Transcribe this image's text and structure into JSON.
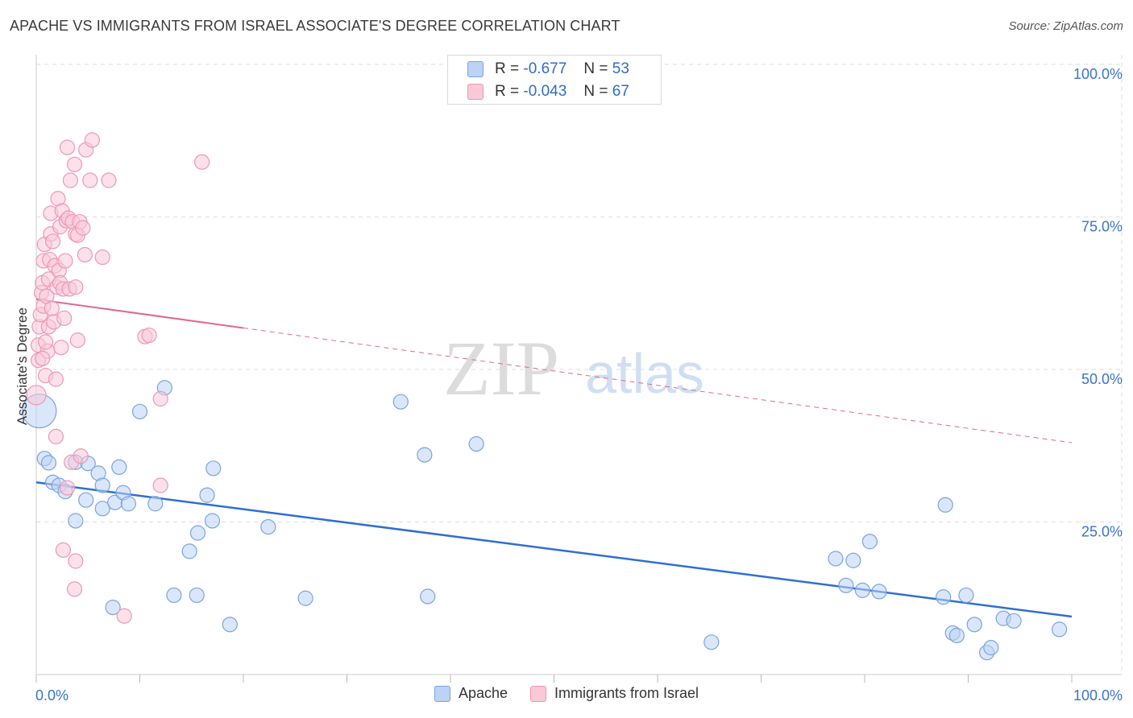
{
  "title": "APACHE VS IMMIGRANTS FROM ISRAEL ASSOCIATE'S DEGREE CORRELATION CHART",
  "source": "Source: ZipAtlas.com",
  "watermark": {
    "zip": "ZIP",
    "atlas": "atlas"
  },
  "stats": [
    {
      "label_r": "R =",
      "r": "-0.677",
      "label_n": "N =",
      "n": "53",
      "color": "#bcd3f5"
    },
    {
      "label_r": "R =",
      "r": "-0.043",
      "label_n": "N =",
      "n": "67",
      "color": "#f9c9d8"
    }
  ],
  "legend": {
    "apache": "Apache",
    "israel": "Immigrants from Israel"
  },
  "chart_data": {
    "type": "scatter",
    "title": "APACHE VS IMMIGRANTS FROM ISRAEL ASSOCIATE'S DEGREE CORRELATION CHART",
    "xlabel": "",
    "ylabel": "Associate's Degree",
    "xlim": [
      0,
      100
    ],
    "ylim": [
      0,
      100
    ],
    "x_tick_labels": [
      "0.0%",
      "100.0%"
    ],
    "y_tick_labels": [
      "25.0%",
      "50.0%",
      "75.0%",
      "100.0%"
    ],
    "y_ticks": [
      25,
      50,
      75,
      100
    ],
    "series": [
      {
        "name": "Apache",
        "color": "#7aa4e0",
        "fill": "#bcd3f5",
        "line_color": "#2f6fd1",
        "trend": {
          "x0": 0,
          "y0": 31.5,
          "x1": 100,
          "y1": 9.5,
          "dashed_from": null
        },
        "points": [
          [
            0.3,
            43.2
          ],
          [
            0.8,
            35.4
          ],
          [
            1.2,
            34.7
          ],
          [
            1.6,
            31.5
          ],
          [
            2.2,
            31.0
          ],
          [
            2.8,
            30.0
          ],
          [
            3.8,
            34.8
          ],
          [
            3.8,
            25.2
          ],
          [
            5.0,
            34.6
          ],
          [
            4.8,
            28.6
          ],
          [
            6.0,
            33.0
          ],
          [
            6.4,
            31.0
          ],
          [
            6.4,
            27.2
          ],
          [
            7.4,
            11.0
          ],
          [
            7.6,
            28.2
          ],
          [
            8.0,
            34.0
          ],
          [
            8.4,
            29.8
          ],
          [
            8.9,
            28.0
          ],
          [
            10.0,
            43.1
          ],
          [
            11.5,
            28.0
          ],
          [
            12.4,
            47.0
          ],
          [
            13.3,
            13.0
          ],
          [
            14.8,
            20.2
          ],
          [
            15.5,
            13.0
          ],
          [
            15.6,
            23.2
          ],
          [
            16.5,
            29.4
          ],
          [
            17.1,
            33.8
          ],
          [
            17.0,
            25.2
          ],
          [
            18.7,
            8.2
          ],
          [
            22.4,
            24.2
          ],
          [
            26.0,
            12.5
          ],
          [
            35.2,
            44.7
          ],
          [
            37.5,
            36.0
          ],
          [
            37.8,
            12.8
          ],
          [
            42.5,
            37.8
          ],
          [
            65.2,
            5.3
          ],
          [
            77.2,
            19.0
          ],
          [
            78.2,
            14.6
          ],
          [
            78.9,
            18.7
          ],
          [
            79.8,
            13.8
          ],
          [
            80.5,
            21.8
          ],
          [
            81.4,
            13.6
          ],
          [
            87.6,
            12.7
          ],
          [
            87.8,
            27.8
          ],
          [
            88.5,
            6.8
          ],
          [
            88.9,
            6.4
          ],
          [
            89.8,
            13.0
          ],
          [
            90.6,
            8.2
          ],
          [
            91.8,
            3.6
          ],
          [
            92.2,
            4.4
          ],
          [
            93.4,
            9.2
          ],
          [
            94.4,
            8.8
          ],
          [
            98.8,
            7.4
          ]
        ]
      },
      {
        "name": "Immigrants from Israel",
        "color": "#ec98b4",
        "fill": "#f9c9d8",
        "line_color": "#e0698f",
        "trend": {
          "x0": 0,
          "y0": 61.5,
          "x1": 100,
          "y1": 38.0,
          "dashed_from": 20
        },
        "points": [
          [
            0.0,
            45.8
          ],
          [
            0.2,
            51.5
          ],
          [
            0.2,
            54.0
          ],
          [
            0.3,
            57.0
          ],
          [
            0.4,
            59.0
          ],
          [
            0.5,
            62.6
          ],
          [
            0.6,
            64.2
          ],
          [
            0.7,
            60.4
          ],
          [
            0.7,
            67.8
          ],
          [
            0.8,
            70.5
          ],
          [
            0.9,
            49.0
          ],
          [
            1.0,
            62.0
          ],
          [
            1.1,
            53.0
          ],
          [
            1.2,
            57.0
          ],
          [
            1.2,
            64.8
          ],
          [
            1.3,
            68.0
          ],
          [
            1.4,
            72.2
          ],
          [
            1.4,
            75.6
          ],
          [
            1.5,
            60.0
          ],
          [
            1.6,
            71.0
          ],
          [
            1.7,
            57.8
          ],
          [
            1.8,
            67.0
          ],
          [
            1.9,
            39.0
          ],
          [
            1.9,
            48.4
          ],
          [
            2.0,
            63.5
          ],
          [
            2.1,
            78.0
          ],
          [
            2.2,
            66.2
          ],
          [
            2.3,
            73.4
          ],
          [
            2.3,
            64.2
          ],
          [
            2.5,
            76.0
          ],
          [
            2.6,
            20.4
          ],
          [
            2.6,
            63.2
          ],
          [
            2.7,
            58.4
          ],
          [
            2.8,
            67.8
          ],
          [
            2.9,
            74.4
          ],
          [
            3.0,
            86.4
          ],
          [
            3.1,
            74.8
          ],
          [
            3.2,
            63.2
          ],
          [
            3.3,
            81.0
          ],
          [
            3.4,
            34.8
          ],
          [
            3.5,
            74.2
          ],
          [
            3.7,
            83.6
          ],
          [
            3.7,
            14.0
          ],
          [
            3.8,
            72.2
          ],
          [
            3.8,
            18.6
          ],
          [
            3.8,
            63.5
          ],
          [
            4.0,
            54.8
          ],
          [
            4.0,
            72.0
          ],
          [
            4.2,
            74.2
          ],
          [
            4.3,
            35.8
          ],
          [
            4.5,
            73.2
          ],
          [
            4.7,
            68.8
          ],
          [
            4.8,
            86.0
          ],
          [
            5.2,
            81.0
          ],
          [
            5.4,
            87.6
          ],
          [
            6.4,
            68.4
          ],
          [
            7.0,
            81.0
          ],
          [
            8.5,
            9.6
          ],
          [
            10.5,
            55.4
          ],
          [
            10.9,
            55.6
          ],
          [
            12.0,
            45.2
          ],
          [
            12.0,
            31.0
          ],
          [
            16.0,
            84.0
          ],
          [
            0.9,
            54.5
          ],
          [
            3.0,
            30.6
          ],
          [
            2.4,
            53.6
          ],
          [
            0.6,
            51.8
          ]
        ]
      }
    ],
    "legend_position": "bottom-center"
  }
}
